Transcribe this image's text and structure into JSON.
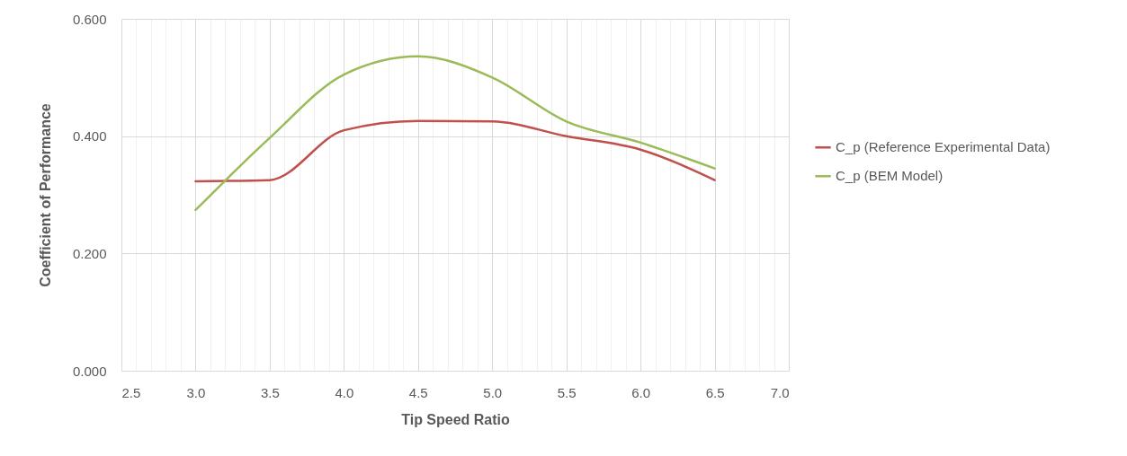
{
  "chart_data": {
    "type": "line",
    "xlabel": "Tip Speed Ratio",
    "ylabel": "Coefficient of Performance",
    "x": [
      3.0,
      3.5,
      4.0,
      4.5,
      5.0,
      5.5,
      6.0,
      6.5
    ],
    "series": [
      {
        "name": "C_p (Reference Experimental Data)",
        "color": "#c0504d",
        "values": [
          0.323,
          0.325,
          0.41,
          0.426,
          0.425,
          0.4,
          0.377,
          0.325
        ]
      },
      {
        "name": "C_p (BEM Model)",
        "color": "#9bbb59",
        "values": [
          0.274,
          0.397,
          0.505,
          0.536,
          0.5,
          0.425,
          0.389,
          0.345
        ]
      }
    ],
    "xlim": [
      2.5,
      7.0
    ],
    "xticks": [
      {
        "value": 2.5,
        "label": "2.5"
      },
      {
        "value": 2.6,
        "label": null
      },
      {
        "value": 2.7,
        "label": null
      },
      {
        "value": 2.8,
        "label": null
      },
      {
        "value": 2.9,
        "label": null
      },
      {
        "value": 3,
        "label": "3.0"
      },
      {
        "value": 3.1,
        "label": null
      },
      {
        "value": 3.2,
        "label": null
      },
      {
        "value": 3.3,
        "label": null
      },
      {
        "value": 3.4,
        "label": null
      },
      {
        "value": 3.5,
        "label": "3.5"
      },
      {
        "value": 3.6,
        "label": null
      },
      {
        "value": 3.7,
        "label": null
      },
      {
        "value": 3.8,
        "label": null
      },
      {
        "value": 3.9,
        "label": null
      },
      {
        "value": 4,
        "label": "4.0"
      },
      {
        "value": 4.1,
        "label": null
      },
      {
        "value": 4.2,
        "label": null
      },
      {
        "value": 4.3,
        "label": null
      },
      {
        "value": 4.4,
        "label": null
      },
      {
        "value": 4.5,
        "label": "4.5"
      },
      {
        "value": 4.6,
        "label": null
      },
      {
        "value": 4.7,
        "label": null
      },
      {
        "value": 4.8,
        "label": null
      },
      {
        "value": 4.9,
        "label": null
      },
      {
        "value": 5,
        "label": "5.0"
      },
      {
        "value": 5.1,
        "label": null
      },
      {
        "value": 5.2,
        "label": null
      },
      {
        "value": 5.3,
        "label": null
      },
      {
        "value": 5.4,
        "label": null
      },
      {
        "value": 5.5,
        "label": "5.5"
      },
      {
        "value": 5.6,
        "label": null
      },
      {
        "value": 5.7,
        "label": null
      },
      {
        "value": 5.8,
        "label": null
      },
      {
        "value": 5.9,
        "label": null
      },
      {
        "value": 6,
        "label": "6.0"
      },
      {
        "value": 6.1,
        "label": null
      },
      {
        "value": 6.2,
        "label": null
      },
      {
        "value": 6.3,
        "label": null
      },
      {
        "value": 6.4,
        "label": null
      },
      {
        "value": 6.5,
        "label": "6.5"
      },
      {
        "value": 6.6,
        "label": null
      },
      {
        "value": 6.7,
        "label": null
      },
      {
        "value": 6.8,
        "label": null
      },
      {
        "value": 6.9,
        "label": null
      },
      {
        "value": 7,
        "label": "7.0"
      }
    ],
    "ylim": [
      0,
      0.6
    ],
    "yticks": [
      {
        "value": 0,
        "label": "0.000"
      },
      {
        "value": 0.2,
        "label": "0.200"
      },
      {
        "value": 0.4,
        "label": "0.400"
      },
      {
        "value": 0.6,
        "label": "0.600"
      }
    ],
    "grid": true,
    "legend": "right",
    "line_style": "solid",
    "marker": "none"
  }
}
